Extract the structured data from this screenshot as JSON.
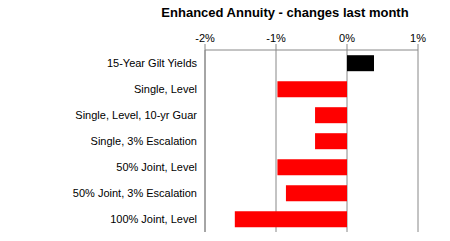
{
  "chart_data": {
    "type": "bar",
    "title": "Enhanced Annuity - changes last month",
    "orientation": "horizontal",
    "categories": [
      "15-Year Gilt Yields",
      "Single, Level",
      "Single, Level, 10-yr Guar",
      "Single, 3% Escalation",
      "50% Joint, Level",
      "50% Joint, 3% Escalation",
      "100% Joint, Level"
    ],
    "values": [
      0.38,
      -0.98,
      -0.45,
      -0.45,
      -0.98,
      -0.86,
      -1.58
    ],
    "colors": [
      "#000000",
      "#ff0000",
      "#ff0000",
      "#ff0000",
      "#ff0000",
      "#ff0000",
      "#ff0000"
    ],
    "xlim": [
      -2,
      1
    ],
    "xticks": [
      {
        "value": -2,
        "label": "-2%"
      },
      {
        "value": -1,
        "label": "-1%"
      },
      {
        "value": 0,
        "label": "0%"
      },
      {
        "value": 1,
        "label": "1%"
      }
    ],
    "grid": true
  }
}
